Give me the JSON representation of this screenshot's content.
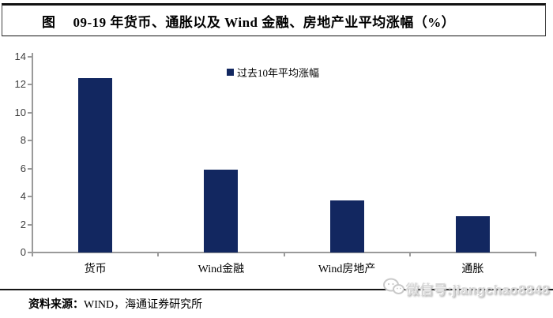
{
  "title": {
    "prefix": "图",
    "text": "09-19 年货币、通胀以及 Wind 金融、房地产业平均涨幅（%）"
  },
  "chart_data": {
    "type": "bar",
    "title": "09-19 年货币、通胀以及 Wind 金融、房地产业平均涨幅（%）",
    "categories": [
      "货币",
      "Wind金融",
      "Wind房地产",
      "通胀"
    ],
    "series": [
      {
        "name": "过去10年平均涨幅",
        "values": [
          12.5,
          5.9,
          3.7,
          2.6
        ]
      }
    ],
    "xlabel": "",
    "ylabel": "",
    "ylim": [
      0,
      14
    ],
    "yticks": [
      0,
      2,
      4,
      6,
      8,
      10,
      12,
      14
    ],
    "grid": false,
    "legend_position": "top-center",
    "bar_color": "#122760",
    "axis_color": "#9a9a9a"
  },
  "legend": {
    "label": "过去10年平均涨幅"
  },
  "footer": {
    "source_label": "资料来源：",
    "source_text": "WIND，海通证券研究所"
  },
  "watermark": {
    "text": "微信号:jiangchao8848"
  }
}
